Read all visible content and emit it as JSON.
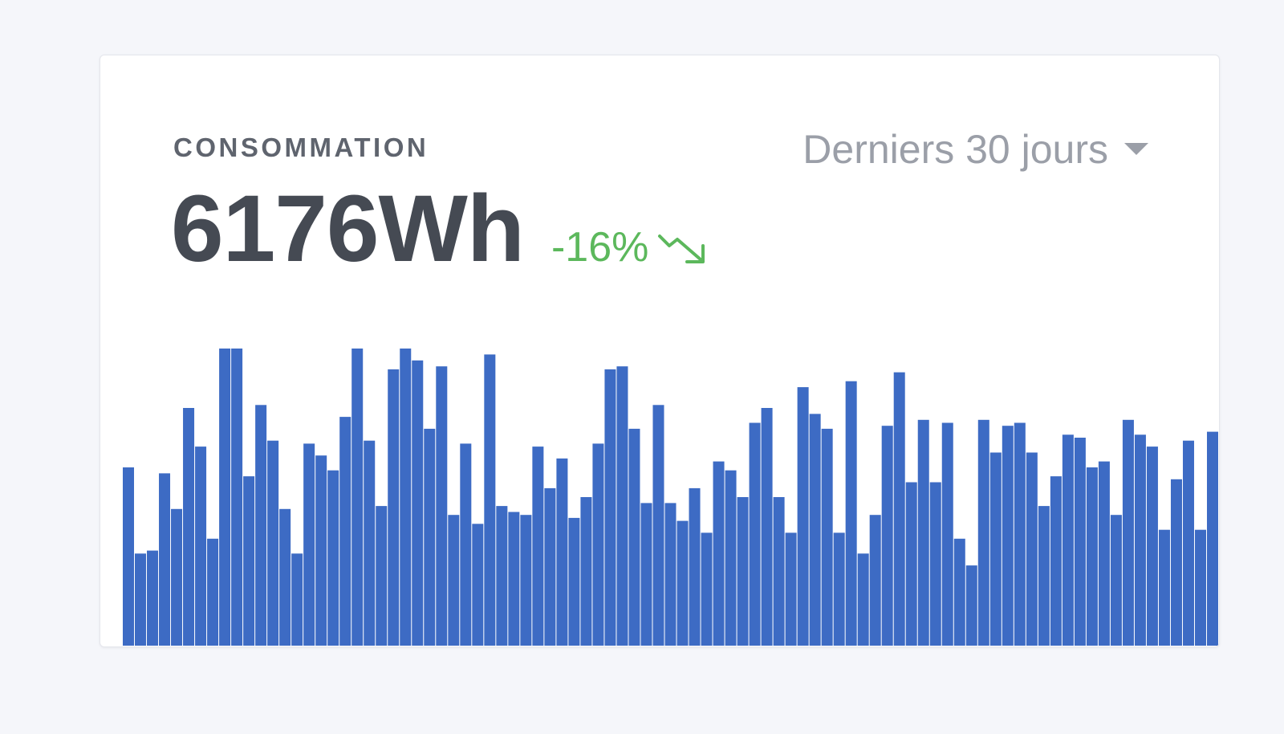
{
  "card": {
    "title": "CONSOMMATION",
    "value": "6176Wh",
    "delta": "-16%",
    "delta_icon": "trend-down-icon",
    "period": "Derniers 30 jours",
    "period_icon": "caret-down-icon"
  },
  "colors": {
    "bar": "#3d6bc4",
    "positive": "#5cb85c",
    "text_dark": "#454a53",
    "text_muted": "#9b9fa8"
  },
  "chart_data": {
    "type": "bar",
    "ylim": [
      0,
      100
    ],
    "values": [
      60,
      31,
      32,
      58,
      46,
      80,
      67,
      36,
      100,
      100,
      57,
      81,
      69,
      46,
      31,
      68,
      64,
      59,
      77,
      100,
      69,
      47,
      93,
      100,
      96,
      73,
      94,
      44,
      68,
      41,
      98,
      47,
      45,
      44,
      67,
      53,
      63,
      43,
      50,
      68,
      93,
      94,
      73,
      48,
      81,
      48,
      42,
      53,
      38,
      62,
      59,
      50,
      75,
      80,
      50,
      38,
      87,
      78,
      73,
      38,
      89,
      31,
      44,
      74,
      92,
      55,
      76,
      55,
      75,
      36,
      27,
      76,
      65,
      74,
      75,
      65,
      47,
      57,
      71,
      70,
      60,
      62,
      44,
      76,
      71,
      67,
      39,
      56,
      69,
      39,
      72
    ]
  }
}
